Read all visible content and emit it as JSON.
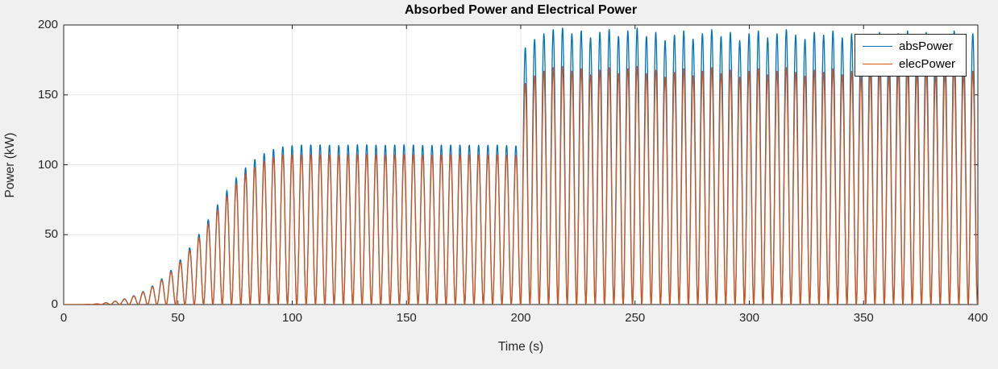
{
  "window": {
    "background": "#F0F0F0"
  },
  "chart_data": {
    "type": "line",
    "title": "Absorbed Power and Electrical Power",
    "xlabel": "Time (s)",
    "ylabel": "Power (kW)",
    "xlim": [
      0,
      400
    ],
    "ylim": [
      0,
      200
    ],
    "xticks": [
      0,
      50,
      100,
      150,
      200,
      250,
      300,
      350,
      400
    ],
    "yticks": [
      0,
      50,
      100,
      150,
      200
    ],
    "grid": true,
    "grid_color": "#E6E6E6",
    "axis_color": "#262626",
    "plot_bg": "#FFFFFF",
    "pulse_period_s": 4.08,
    "waveform": "power(t) = envelope(t) * sin^2(pi * t / pulse_period_s)",
    "legend": {
      "position": "northeast",
      "entries": [
        {
          "label": "absPower",
          "color": "#0072BD"
        },
        {
          "label": "elecPower",
          "color": "#D95319"
        }
      ]
    },
    "series": [
      {
        "name": "absPower",
        "color": "#0072BD",
        "envelope": [
          [
            0,
            0
          ],
          [
            8,
            0
          ],
          [
            11,
            0.2
          ],
          [
            14,
            0.5
          ],
          [
            17,
            1
          ],
          [
            20,
            1.7
          ],
          [
            23,
            2.6
          ],
          [
            26,
            3.8
          ],
          [
            29,
            5.3
          ],
          [
            32,
            7.2
          ],
          [
            35,
            9.5
          ],
          [
            38,
            12.4
          ],
          [
            41,
            15.8
          ],
          [
            44,
            19.8
          ],
          [
            47,
            24.5
          ],
          [
            50,
            30
          ],
          [
            53,
            36
          ],
          [
            56,
            42.6
          ],
          [
            59,
            49.8
          ],
          [
            62,
            57.4
          ],
          [
            65,
            65.2
          ],
          [
            68,
            73
          ],
          [
            71,
            80.5
          ],
          [
            74,
            87.4
          ],
          [
            77,
            93.5
          ],
          [
            80,
            98.8
          ],
          [
            83,
            103.2
          ],
          [
            86,
            106.7
          ],
          [
            89,
            109.4
          ],
          [
            92,
            111.4
          ],
          [
            95,
            112.8
          ],
          [
            98,
            113.6
          ],
          [
            102,
            114.2
          ],
          [
            110,
            114.5
          ],
          [
            120,
            114
          ],
          [
            130,
            114.6
          ],
          [
            140,
            114.1
          ],
          [
            150,
            114.5
          ],
          [
            160,
            114
          ],
          [
            170,
            114.4
          ],
          [
            180,
            114.1
          ],
          [
            190,
            114.3
          ],
          [
            199.7,
            113.5
          ],
          [
            200.3,
            180
          ],
          [
            202,
            184
          ],
          [
            206.08,
            190
          ],
          [
            210.16,
            194
          ],
          [
            214.24,
            197
          ],
          [
            218.32,
            198
          ],
          [
            222.4,
            194
          ],
          [
            226.48,
            196
          ],
          [
            230.56,
            191
          ],
          [
            234.64,
            195
          ],
          [
            238.72,
            197
          ],
          [
            242.8,
            192
          ],
          [
            246.88,
            196
          ],
          [
            250.96,
            198
          ],
          [
            255.04,
            192
          ],
          [
            259.12,
            195
          ],
          [
            263.2,
            189
          ],
          [
            267.28,
            193
          ],
          [
            271.36,
            196
          ],
          [
            275.44,
            190
          ],
          [
            279.52,
            194
          ],
          [
            283.6,
            197
          ],
          [
            287.68,
            192
          ],
          [
            291.76,
            195
          ],
          [
            295.84,
            189
          ],
          [
            299.92,
            194
          ],
          [
            304,
            196
          ],
          [
            308.08,
            191
          ],
          [
            312.16,
            194
          ],
          [
            316.24,
            197
          ],
          [
            320.32,
            193
          ],
          [
            324.4,
            190
          ],
          [
            328.48,
            195
          ],
          [
            332.56,
            193
          ],
          [
            336.64,
            196
          ],
          [
            340.72,
            191
          ],
          [
            344.8,
            194
          ],
          [
            348.88,
            189
          ],
          [
            352.96,
            193
          ],
          [
            357.04,
            195
          ],
          [
            361.12,
            190
          ],
          [
            365.2,
            194
          ],
          [
            369.28,
            196
          ],
          [
            373.36,
            192
          ],
          [
            377.44,
            195
          ],
          [
            381.52,
            190
          ],
          [
            385.6,
            193
          ],
          [
            389.68,
            196
          ],
          [
            393.76,
            191
          ],
          [
            397.84,
            194
          ],
          [
            400,
            194
          ]
        ]
      },
      {
        "name": "elecPower",
        "color": "#D95319",
        "envelope": [
          [
            0,
            0
          ],
          [
            8,
            0
          ],
          [
            11,
            0.19
          ],
          [
            14,
            0.48
          ],
          [
            17,
            0.95
          ],
          [
            20,
            1.6
          ],
          [
            23,
            2.5
          ],
          [
            26,
            3.6
          ],
          [
            29,
            5
          ],
          [
            32,
            6.8
          ],
          [
            35,
            9
          ],
          [
            38,
            11.8
          ],
          [
            41,
            15
          ],
          [
            44,
            18.8
          ],
          [
            47,
            23.3
          ],
          [
            50,
            28.5
          ],
          [
            53,
            34.2
          ],
          [
            56,
            40.5
          ],
          [
            59,
            47.3
          ],
          [
            62,
            54.5
          ],
          [
            65,
            61.9
          ],
          [
            68,
            69.4
          ],
          [
            71,
            76.5
          ],
          [
            74,
            83
          ],
          [
            77,
            88.8
          ],
          [
            80,
            93.9
          ],
          [
            83,
            98
          ],
          [
            86,
            101.4
          ],
          [
            89,
            103.9
          ],
          [
            92,
            105.8
          ],
          [
            95,
            107.2
          ],
          [
            98,
            107.9
          ],
          [
            102,
            107.4
          ],
          [
            110,
            107.6
          ],
          [
            120,
            107.2
          ],
          [
            130,
            107.7
          ],
          [
            140,
            107.3
          ],
          [
            150,
            107.6
          ],
          [
            160,
            107.2
          ],
          [
            170,
            107.5
          ],
          [
            180,
            107.3
          ],
          [
            190,
            107.4
          ],
          [
            199.7,
            106.7
          ],
          [
            200.3,
            155
          ],
          [
            202,
            158.6
          ],
          [
            206.08,
            163.8
          ],
          [
            210.16,
            167.2
          ],
          [
            214.24,
            169.8
          ],
          [
            218.32,
            170.7
          ],
          [
            222.4,
            167.2
          ],
          [
            226.48,
            169
          ],
          [
            230.56,
            164.6
          ],
          [
            234.64,
            168.1
          ],
          [
            238.72,
            169.8
          ],
          [
            242.8,
            165.5
          ],
          [
            246.88,
            169
          ],
          [
            250.96,
            170.7
          ],
          [
            255.04,
            165.5
          ],
          [
            259.12,
            168.1
          ],
          [
            263.2,
            162.9
          ],
          [
            267.28,
            166.4
          ],
          [
            271.36,
            169
          ],
          [
            275.44,
            163.8
          ],
          [
            279.52,
            167.2
          ],
          [
            283.6,
            169.8
          ],
          [
            287.68,
            165.5
          ],
          [
            291.76,
            168.1
          ],
          [
            295.84,
            162.9
          ],
          [
            299.92,
            167.2
          ],
          [
            304,
            169
          ],
          [
            308.08,
            164.6
          ],
          [
            312.16,
            167.2
          ],
          [
            316.24,
            169.8
          ],
          [
            320.32,
            166.4
          ],
          [
            324.4,
            163.8
          ],
          [
            328.48,
            168.1
          ],
          [
            332.56,
            166.4
          ],
          [
            336.64,
            169
          ],
          [
            340.72,
            164.6
          ],
          [
            344.8,
            167.2
          ],
          [
            348.88,
            162.9
          ],
          [
            352.96,
            166.4
          ],
          [
            357.04,
            168.1
          ],
          [
            361.12,
            163.8
          ],
          [
            365.2,
            167.2
          ],
          [
            369.28,
            169
          ],
          [
            373.36,
            165.5
          ],
          [
            377.44,
            168.1
          ],
          [
            381.52,
            163.8
          ],
          [
            385.6,
            166.4
          ],
          [
            389.68,
            169
          ],
          [
            393.76,
            164.6
          ],
          [
            397.84,
            167.2
          ],
          [
            400,
            167.2
          ]
        ]
      }
    ]
  }
}
